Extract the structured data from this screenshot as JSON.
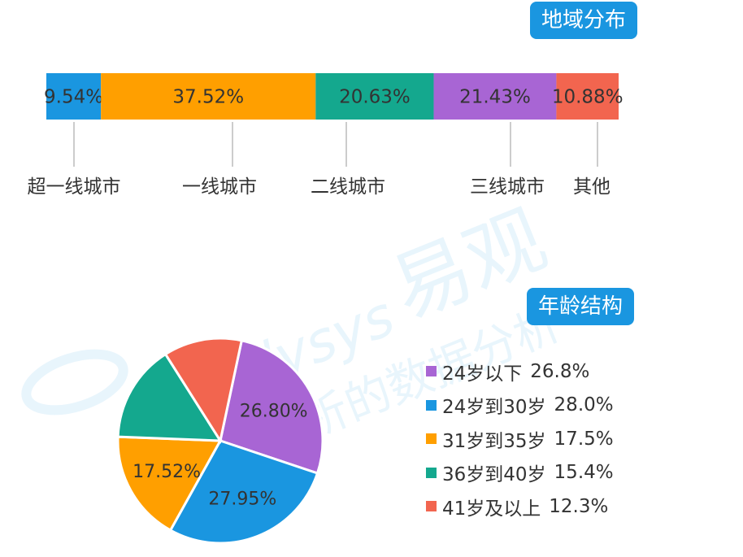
{
  "watermark": {
    "brand": "易观",
    "brand_en": "Analysys",
    "subtitle": "分析的数据分析"
  },
  "titles": {
    "region": "地域分布",
    "age": "年龄结构"
  },
  "colors": {
    "badge": "#1a96e0",
    "blue": "#1a96e0",
    "orange": "#ff9f00",
    "teal": "#14a88e",
    "purple": "#a865d4",
    "red": "#f2654f"
  },
  "chart_data": [
    {
      "type": "bar",
      "orientation": "horizontal-stacked-100",
      "title": "地域分布",
      "categories": [
        "超一线城市",
        "一线城市",
        "二线城市",
        "三线城市",
        "其他"
      ],
      "values": [
        9.54,
        37.52,
        20.63,
        21.43,
        10.88
      ],
      "data_labels": [
        "9.54%",
        "37.52%",
        "20.63%",
        "21.43%",
        "10.88%"
      ],
      "colors": [
        "#1a96e0",
        "#ff9f00",
        "#14a88e",
        "#a865d4",
        "#f2654f"
      ],
      "grid": false,
      "legend": "none"
    },
    {
      "type": "pie",
      "title": "年龄结构",
      "categories": [
        "24岁以下",
        "24岁到30岁",
        "31岁到35岁",
        "36岁到40岁",
        "41岁及以上"
      ],
      "values": [
        26.8,
        27.95,
        17.52,
        15.4,
        12.33
      ],
      "data_labels": [
        "26.80%",
        "27.95%",
        "17.52%",
        "",
        ""
      ],
      "legend_values": [
        "26.8%",
        "28.0%",
        "17.5%",
        "15.4%",
        "12.3%"
      ],
      "colors": [
        "#a865d4",
        "#1a96e0",
        "#ff9f00",
        "#14a88e",
        "#f2654f"
      ],
      "legend": "right"
    }
  ]
}
